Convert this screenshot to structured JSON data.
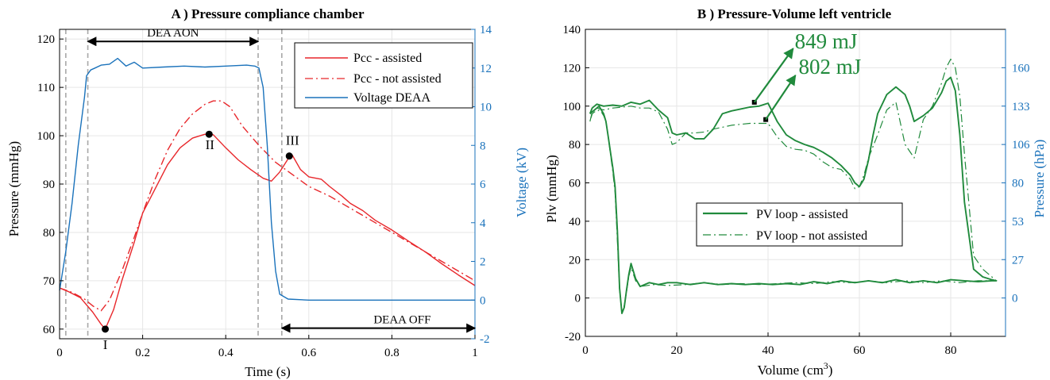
{
  "colors": {
    "red": "#e8272b",
    "blue": "#1a72bb",
    "green": "#208a3c",
    "black": "#000000",
    "grid": "#e6e6e6",
    "dash": "#a8a8a8"
  },
  "chart_data": [
    {
      "type": "line",
      "title": "A )  Pressure compliance chamber",
      "xlabel": "Time (s)",
      "ylabel": "Pressure (mmHg)",
      "y2label": "Voltage (kV)",
      "xlim": [
        0,
        1
      ],
      "ylim": [
        58,
        122
      ],
      "y2lim": [
        -2,
        14
      ],
      "xticks": [
        "0",
        "0.2",
        "0.4",
        "0.6",
        "0.8",
        "1"
      ],
      "xtick_values": [
        0,
        0.2,
        0.4,
        0.6,
        0.8,
        1
      ],
      "yticks": [
        "60",
        "70",
        "80",
        "90",
        "100",
        "110",
        "120"
      ],
      "ytick_values": [
        60,
        70,
        80,
        90,
        100,
        110,
        120
      ],
      "y2ticks": [
        "-2",
        "0",
        "2",
        "4",
        "6",
        "8",
        "10",
        "12",
        "14"
      ],
      "y2tick_values": [
        -2,
        0,
        2,
        4,
        6,
        8,
        10,
        12,
        14
      ],
      "grid": true,
      "legend_position": "top-right",
      "series": [
        {
          "name": "Pcc - assisted",
          "axis": "left",
          "style": "solid",
          "color": "#e8272b",
          "x": [
            0,
            0.02,
            0.05,
            0.08,
            0.1,
            0.11,
            0.13,
            0.15,
            0.18,
            0.2,
            0.23,
            0.26,
            0.29,
            0.32,
            0.35,
            0.37,
            0.4,
            0.43,
            0.46,
            0.49,
            0.51,
            0.53,
            0.55,
            0.56,
            0.58,
            0.6,
            0.63,
            0.65,
            0.68,
            0.7,
            0.73,
            0.76,
            0.8,
            0.84,
            0.88,
            0.92,
            0.96,
            1.0
          ],
          "y": [
            68.5,
            67.8,
            66.5,
            63.5,
            61,
            60,
            64,
            70,
            78,
            84,
            89,
            94,
            97.5,
            99.5,
            100.3,
            100.2,
            97.5,
            95,
            93,
            91.2,
            90.6,
            92.5,
            95.2,
            96,
            93,
            91.5,
            91,
            89.5,
            87.5,
            86,
            84.5,
            82.5,
            80.5,
            78.2,
            76,
            73.5,
            71.2,
            69
          ]
        },
        {
          "name": "Pcc - not assisted",
          "axis": "left",
          "style": "dashdot",
          "color": "#e8272b",
          "x": [
            0,
            0.03,
            0.06,
            0.08,
            0.1,
            0.12,
            0.15,
            0.18,
            0.2,
            0.23,
            0.26,
            0.29,
            0.32,
            0.35,
            0.37,
            0.39,
            0.41,
            0.44,
            0.48,
            0.52,
            0.56,
            0.6,
            0.65,
            0.7,
            0.75,
            0.8,
            0.85,
            0.9,
            0.95,
            1.0
          ],
          "y": [
            68.5,
            67.6,
            66.2,
            64.8,
            63.8,
            66,
            72,
            79,
            84,
            91,
            97,
            101.5,
            104.5,
            106.5,
            107.2,
            107.2,
            106,
            102,
            98,
            94.5,
            92,
            89.5,
            87.5,
            85,
            82.5,
            80,
            77.5,
            75,
            72.5,
            70
          ]
        },
        {
          "name": "Voltage DEAA",
          "axis": "right",
          "style": "solid",
          "color": "#1a72bb",
          "x": [
            0,
            0.015,
            0.03,
            0.045,
            0.06,
            0.065,
            0.075,
            0.085,
            0.1,
            0.12,
            0.14,
            0.16,
            0.18,
            0.2,
            0.25,
            0.3,
            0.35,
            0.4,
            0.45,
            0.47,
            0.48,
            0.49,
            0.5,
            0.51,
            0.52,
            0.53,
            0.55,
            0.6,
            0.7,
            0.8,
            0.9,
            1.0
          ],
          "y": [
            0.5,
            2.5,
            5,
            8,
            10.5,
            11.6,
            11.9,
            12.0,
            12.15,
            12.2,
            12.5,
            12.1,
            12.3,
            12.0,
            12.05,
            12.1,
            12.05,
            12.1,
            12.15,
            12.1,
            12.0,
            11.0,
            8.0,
            4.0,
            1.5,
            0.3,
            0.05,
            0.0,
            0.0,
            0.0,
            0.0,
            0.0
          ]
        }
      ],
      "vlines": [
        0.015,
        0.068,
        0.478,
        0.535
      ],
      "points": [
        {
          "label": "I",
          "x": 0.11,
          "y": 60
        },
        {
          "label": "II",
          "x": 0.36,
          "y": 100.3
        },
        {
          "label": "III",
          "x": 0.553,
          "y": 95.8
        }
      ],
      "annotations": [
        {
          "text": "DEA AON",
          "from": 0.068,
          "to": 0.478,
          "y": 119.5
        },
        {
          "text": "DEAA OFF",
          "from": 0.535,
          "to": 1.0,
          "y": 60.2
        }
      ]
    },
    {
      "type": "line",
      "title": "B )  Pressure-Volume left ventricle",
      "xlabel": "Volume (cm",
      "xlabel_sup": "3",
      "xlabel_end": ")",
      "ylabel": "Plv (mmHg)",
      "y2label": "Pressure (hPa)",
      "xlim": [
        0,
        92
      ],
      "ylim": [
        -20,
        140
      ],
      "y2lim_note": "right axis ticks aligned to left axis values",
      "xticks": [
        "0",
        "20",
        "40",
        "60",
        "80"
      ],
      "xtick_values": [
        0,
        20,
        40,
        60,
        80
      ],
      "yticks": [
        "-20",
        "0",
        "20",
        "40",
        "60",
        "80",
        "100",
        "120",
        "140"
      ],
      "ytick_values": [
        -20,
        0,
        20,
        40,
        60,
        80,
        100,
        120,
        140
      ],
      "y2ticks": [
        "0",
        "27",
        "53",
        "80",
        "106",
        "133",
        "160"
      ],
      "y2tick_positions": [
        0,
        20,
        40,
        60,
        80,
        100,
        120
      ],
      "grid": true,
      "legend_position": "center",
      "series": [
        {
          "name": "PV loop - assisted",
          "style": "solid",
          "color": "#208a3c",
          "x": [
            1,
            1.5,
            2.5,
            4,
            6,
            8,
            10,
            12,
            14,
            16,
            18,
            19,
            20,
            22,
            24,
            26,
            28,
            30,
            32,
            34,
            36,
            38,
            40,
            42,
            44,
            46,
            48,
            50,
            52,
            54,
            56,
            58,
            59,
            60,
            61,
            62,
            63,
            64,
            66,
            68,
            70,
            71,
            72,
            74,
            76,
            78,
            79,
            80,
            81,
            82,
            83,
            85,
            87,
            89,
            90,
            89,
            86,
            83,
            80,
            77,
            74,
            71,
            68,
            65,
            62,
            59,
            56,
            53,
            50,
            47,
            44,
            41,
            38,
            35,
            32,
            29,
            26,
            23,
            20,
            18,
            16,
            14,
            12,
            11,
            10,
            9.5,
            9,
            8.5,
            8,
            7.5,
            7,
            6.5,
            6,
            5.5,
            5,
            4.5,
            4,
            3.5,
            3,
            2.5,
            2,
            1.5,
            1
          ],
          "y": [
            96,
            99,
            101,
            100,
            100.5,
            100,
            102,
            101,
            103,
            98,
            94,
            86,
            85,
            86,
            83,
            83,
            88,
            96,
            97.5,
            98.5,
            99.5,
            100,
            101.5,
            92,
            85,
            82,
            80,
            78.5,
            76,
            73,
            69,
            64,
            60,
            58,
            62,
            72,
            85,
            96,
            106,
            110,
            106,
            100,
            92,
            95,
            99,
            107,
            113,
            115,
            108,
            85,
            50,
            15,
            11,
            9.5,
            9,
            9,
            8.5,
            9,
            9.5,
            8,
            9,
            8,
            9.5,
            8,
            9,
            8,
            9,
            7.5,
            8.5,
            7,
            7.5,
            7,
            7.5,
            7,
            7.5,
            7,
            8,
            7,
            8,
            8,
            7,
            8,
            6,
            10,
            18,
            12,
            4,
            -5,
            -8,
            5,
            35,
            58,
            68,
            76,
            84,
            92,
            96,
            98,
            100,
            99,
            98,
            97,
            96
          ]
        },
        {
          "name": "PV loop - not assisted",
          "style": "dashdot",
          "color": "#208a3c",
          "x": [
            1,
            1.5,
            2.5,
            4,
            6,
            8,
            10,
            12,
            14,
            16,
            18,
            19,
            20,
            22,
            24,
            26,
            28,
            30,
            32,
            34,
            36,
            38,
            40,
            42,
            44,
            46,
            48,
            50,
            52,
            54,
            56,
            58,
            59,
            60,
            61,
            62,
            64,
            66,
            68,
            70,
            72,
            74,
            76,
            78,
            79,
            80,
            81,
            82,
            83,
            85,
            87,
            89,
            90,
            86,
            82,
            78,
            74,
            70,
            66,
            62,
            58,
            54,
            50,
            46,
            42,
            38,
            34,
            30,
            26,
            22,
            18,
            15,
            12,
            11,
            10,
            9.5,
            9,
            8.5,
            8,
            7.5,
            7,
            6.5,
            6,
            5.5,
            5,
            4.5,
            4,
            3.5,
            3,
            2.5,
            2,
            1.5,
            1
          ],
          "y": [
            92,
            97,
            99,
            98,
            99,
            99.5,
            100,
            99,
            99,
            97,
            88,
            80,
            81,
            86,
            86,
            86.5,
            88,
            89,
            90,
            90.5,
            91,
            91,
            91,
            84,
            79,
            77.5,
            77,
            75,
            71,
            68,
            67,
            62,
            57,
            58,
            64,
            73,
            85,
            98,
            102,
            80,
            73,
            93,
            100,
            112,
            120,
            124.5,
            120,
            105,
            75,
            22,
            15,
            11,
            9,
            9,
            8,
            9,
            8,
            9,
            8,
            9,
            8,
            8.5,
            7.5,
            8,
            7.5,
            7,
            7.5,
            7,
            8,
            7,
            6.5,
            7,
            6,
            9,
            16,
            11,
            3,
            -4,
            -7,
            4,
            30,
            55,
            66,
            75,
            84,
            92,
            95,
            97,
            98,
            97,
            97,
            96,
            92
          ]
        }
      ],
      "arrows": [
        {
          "label": "849 mJ",
          "from": [
            37,
            102
          ],
          "to": [
            45.5,
            130
          ]
        },
        {
          "label": "802 mJ",
          "from": [
            39.5,
            93
          ],
          "to": [
            46,
            116
          ]
        }
      ]
    }
  ]
}
